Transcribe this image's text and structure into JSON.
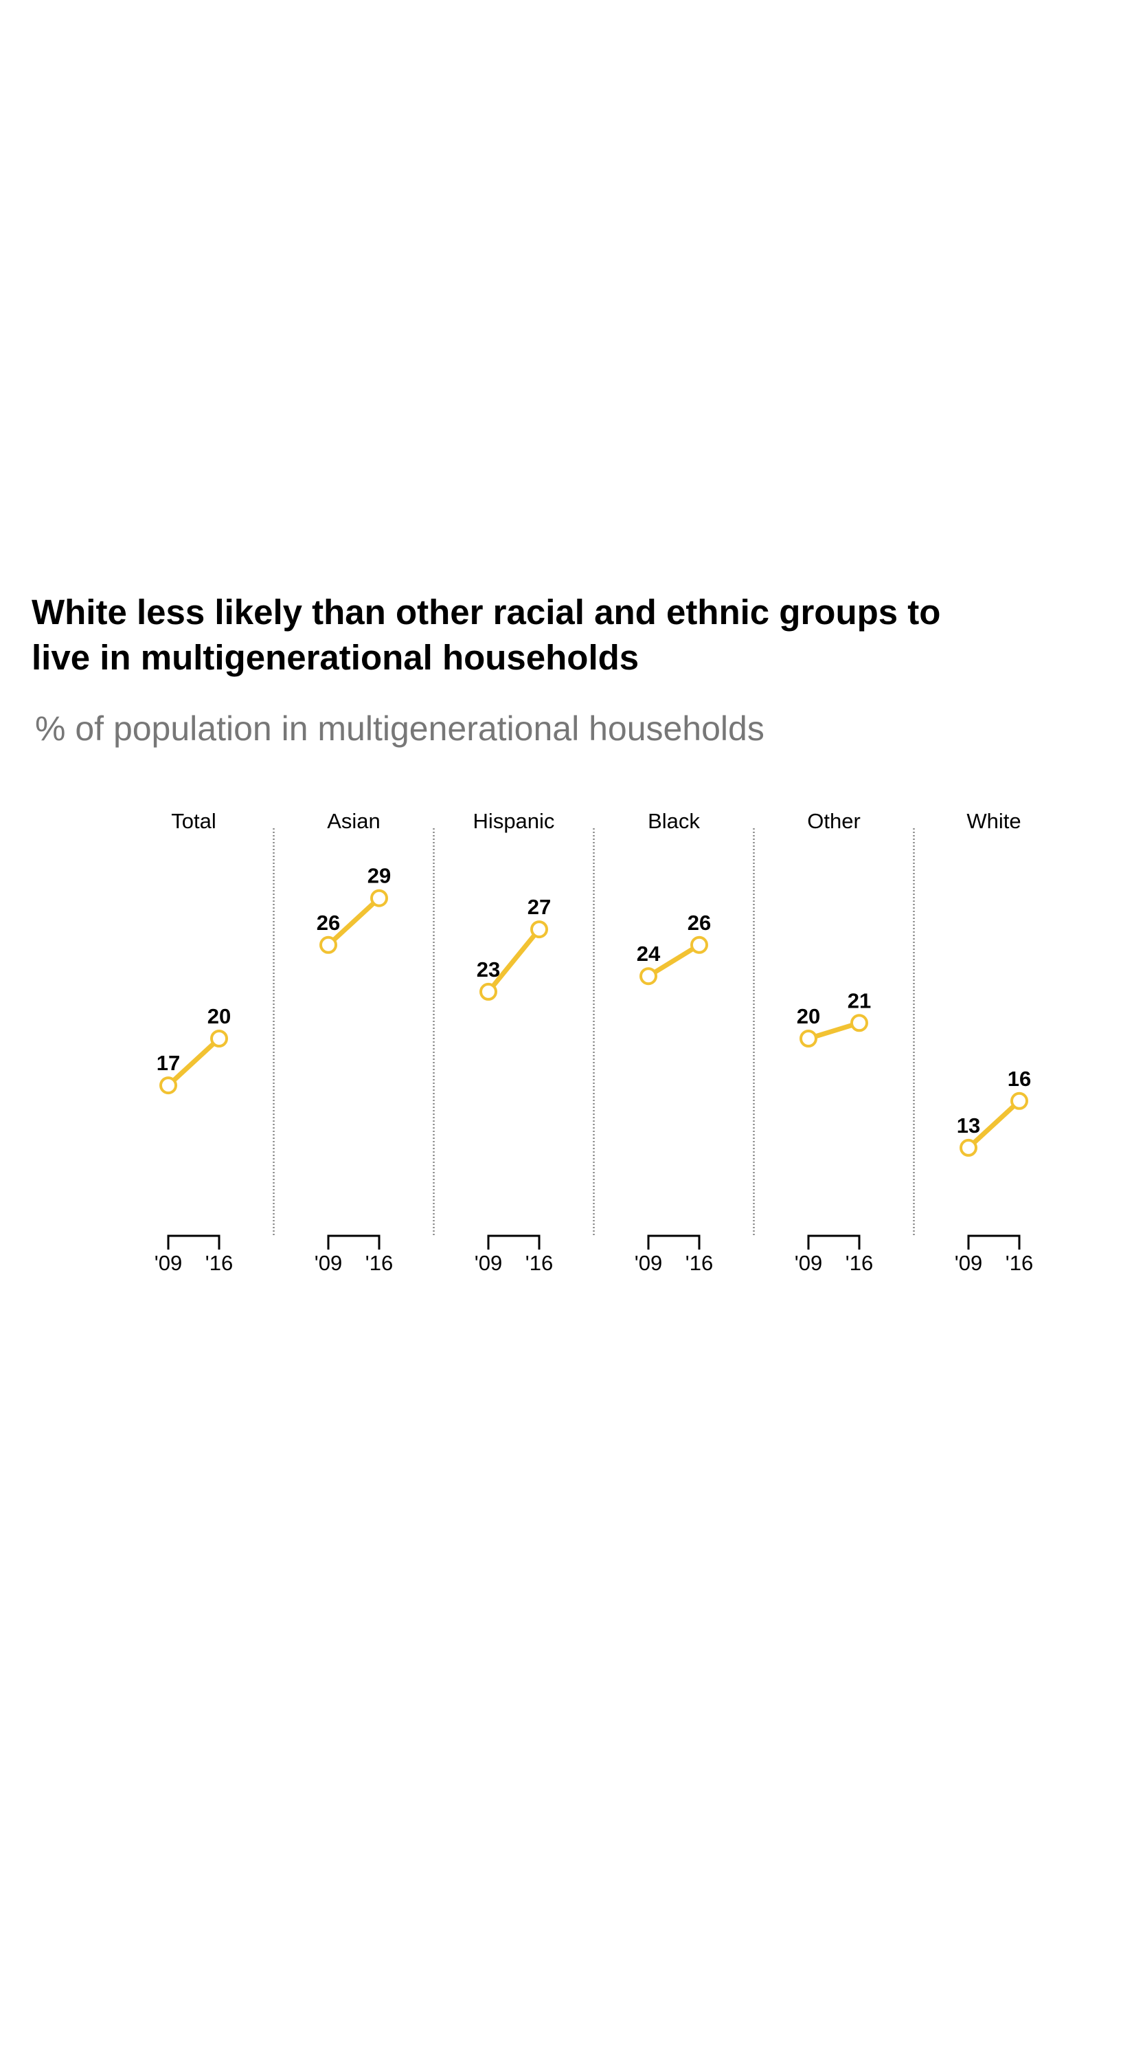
{
  "title": {
    "line1": "White less likely than other racial and ethnic groups to",
    "line2": "live in multigenerational households"
  },
  "subtitle": "% of population in multigenerational households",
  "colors": {
    "line": "#F2C232",
    "text": "#000000",
    "subtitle": "#777777",
    "divider": "#888888"
  },
  "chart_data": {
    "type": "line",
    "title": "White less likely than other racial and ethnic groups to live in multigenerational households",
    "subtitle": "% of population in multigenerational households",
    "x": [
      "'09",
      "'16"
    ],
    "ylim": [
      0,
      33
    ],
    "grid": false,
    "series": [
      {
        "name": "Total",
        "values": [
          17,
          20
        ]
      },
      {
        "name": "Asian",
        "values": [
          26,
          29
        ]
      },
      {
        "name": "Hispanic",
        "values": [
          23,
          27
        ]
      },
      {
        "name": "Black",
        "values": [
          24,
          26
        ]
      },
      {
        "name": "Other",
        "values": [
          20,
          21
        ]
      },
      {
        "name": "White",
        "values": [
          13,
          16
        ]
      }
    ]
  }
}
